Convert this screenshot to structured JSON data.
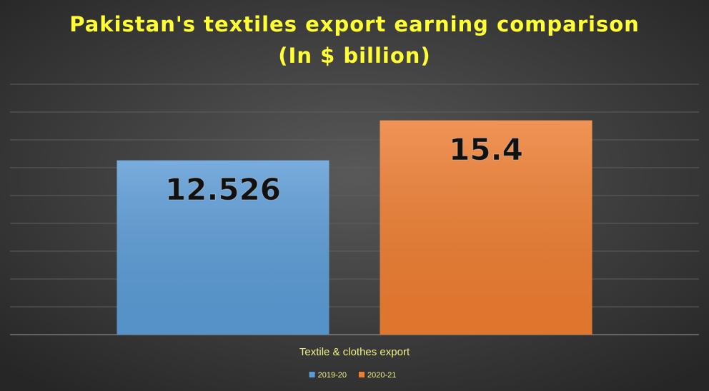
{
  "chart_data": {
    "type": "bar",
    "title": "Pakistan's textiles export earning comparison",
    "subtitle": "(In $ billion)",
    "categories": [
      "Textile & clothes export"
    ],
    "series": [
      {
        "name": "2019-20",
        "color": "#5b9bd5",
        "values": [
          12.526
        ]
      },
      {
        "name": "2020-21",
        "color": "#ed7d31",
        "values": [
          15.4
        ]
      }
    ],
    "ylim": [
      0,
      18
    ],
    "yticks": [
      0,
      2,
      4,
      6,
      8,
      10,
      12,
      14,
      16,
      18
    ],
    "grid": true,
    "legend": "bottom"
  }
}
